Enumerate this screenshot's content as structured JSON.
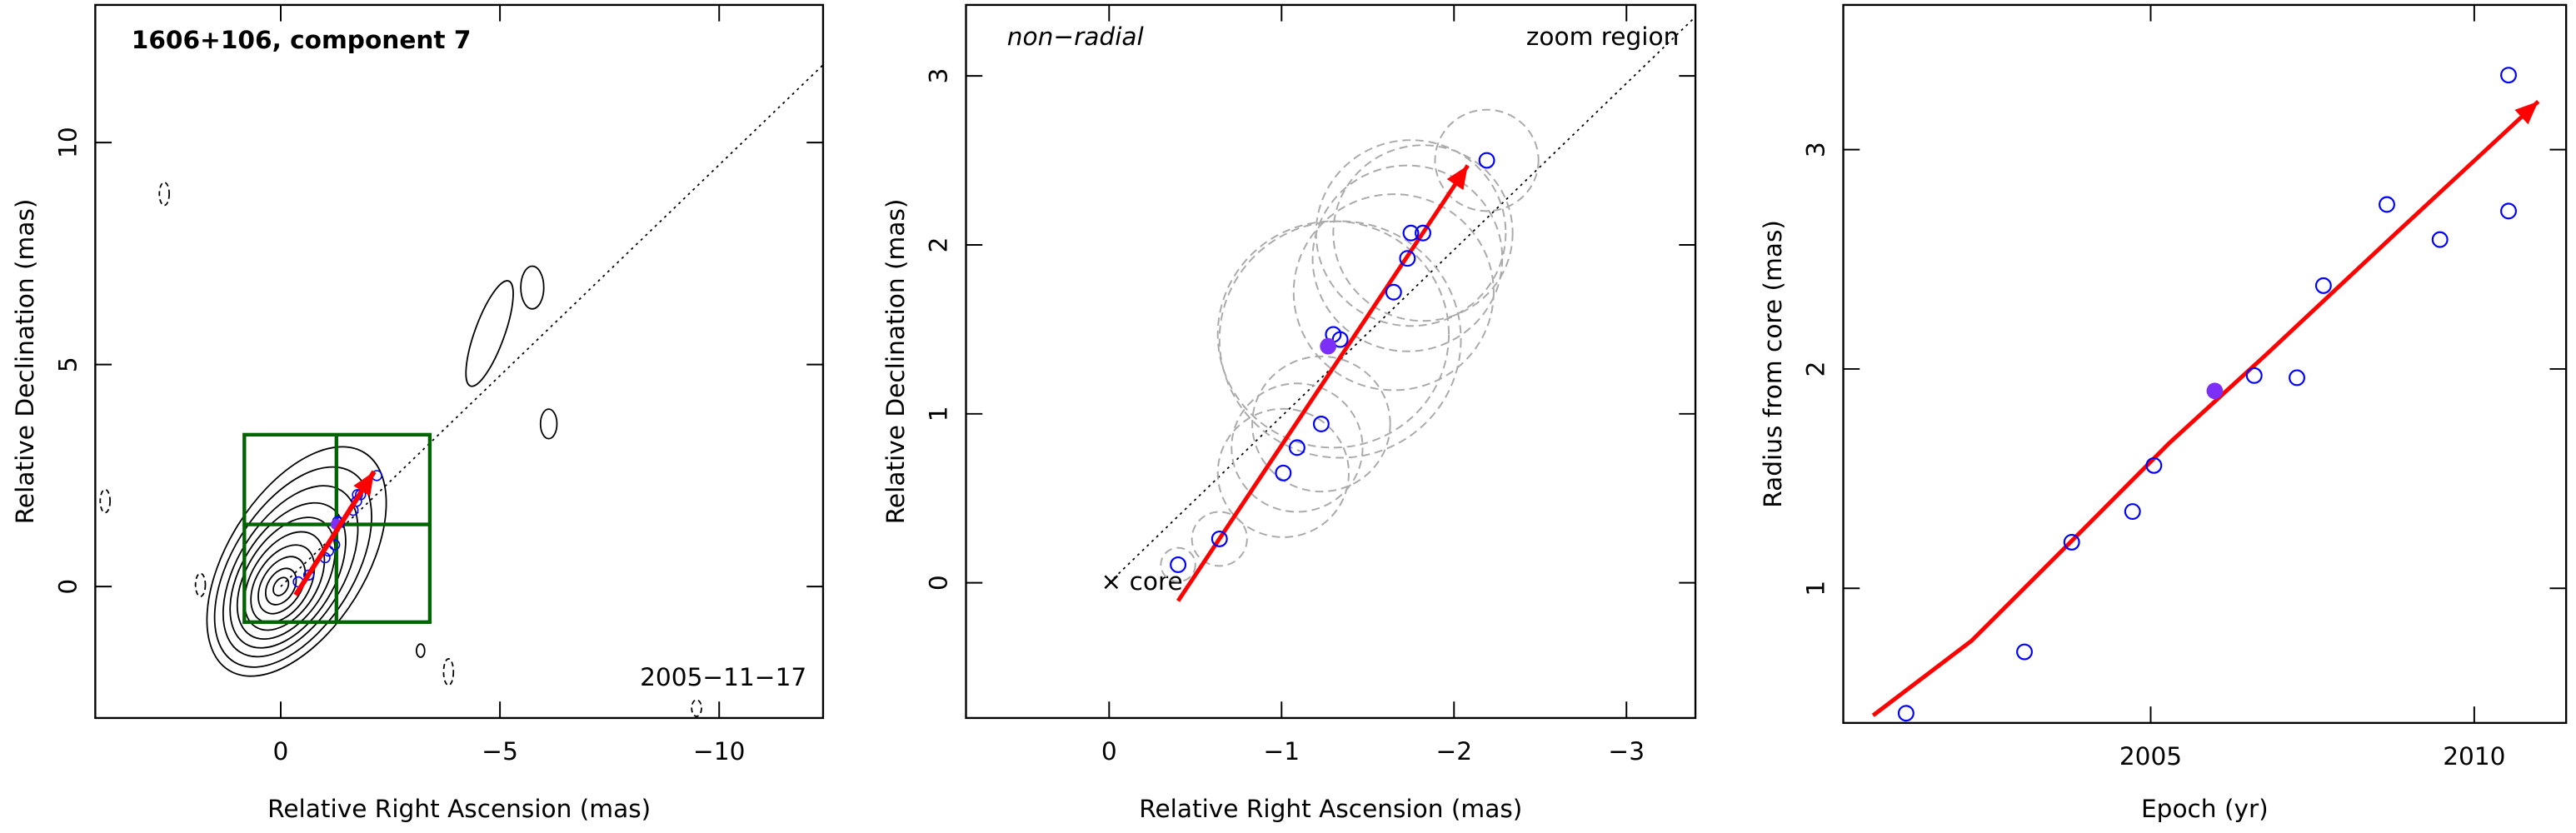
{
  "chart_data": [
    {
      "type": "map",
      "title": "1606+106, component 7",
      "xlabel": "Relative Right Ascension (mas)",
      "ylabel": "Relative Declination (mas)",
      "annotation": "2005−11−17",
      "xlim": [
        4.23,
        -12.37
      ],
      "xticks": [
        0,
        {
          "value": -5,
          "label": "−5"
        },
        {
          "value": -10,
          "label": "−10"
        }
      ],
      "ylim": [
        -2.96,
        13.1
      ],
      "yticks": [
        0,
        5,
        10
      ],
      "arrow": {
        "x": [
          -0.34,
          -2.13
        ],
        "y": [
          -0.19,
          2.59
        ],
        "color": "#ff0000"
      },
      "dotted_line": {
        "x": [
          0,
          -12.36
        ],
        "y": [
          0,
          11.74
        ]
      }
    },
    {
      "type": "scatter",
      "annotation_left": "non−radial",
      "annotation_right": "zoom region",
      "core_label": "× core",
      "xlabel": "Relative Right Ascension (mas)",
      "ylabel": "Relative Declination (mas)",
      "xlim": [
        0.83,
        -3.4
      ],
      "xticks": [
        0,
        {
          "value": -1,
          "label": "−1"
        },
        {
          "value": -2,
          "label": "−2"
        },
        {
          "value": -3,
          "label": "−3"
        }
      ],
      "ylim": [
        -0.8,
        3.42
      ],
      "yticks": [
        0,
        1,
        2,
        3
      ],
      "points": {
        "x": [
          -0.4,
          -0.64,
          -1.01,
          -1.09,
          -1.23,
          -1.3,
          -1.34,
          -1.65,
          -1.73,
          -1.75,
          -1.82,
          -2.19
        ],
        "y": [
          0.107,
          0.26,
          0.65,
          0.8,
          0.94,
          1.47,
          1.44,
          1.72,
          1.92,
          2.07,
          2.07,
          2.5
        ],
        "sizes": [
          0.1,
          0.16,
          0.38,
          0.38,
          0.4,
          0.67,
          0.7,
          0.58,
          0.55,
          0.55,
          0.52,
          0.3
        ],
        "color": "#0000ff"
      },
      "filled_point": {
        "x": -1.27,
        "y": 1.4,
        "color": "#7b2ff7"
      },
      "arrow": {
        "x": [
          -0.4,
          -2.08
        ],
        "y": [
          -0.107,
          2.47
        ],
        "color": "#ff0000"
      },
      "dotted_line": {
        "x": [
          0,
          -3.4
        ],
        "y": [
          0,
          3.35
        ]
      }
    },
    {
      "type": "scatter",
      "xlabel": "Epoch (yr)",
      "ylabel": "Radius from core (mas)",
      "xlim": [
        2000.25,
        2011.42
      ],
      "xticks": [
        2005,
        2010
      ],
      "ylim": [
        0.386,
        3.66
      ],
      "yticks": [
        1,
        2,
        3
      ],
      "points": {
        "x": [
          2001.22,
          2003.05,
          2003.78,
          2004.72,
          2005.05,
          2006.6,
          2007.26,
          2007.67,
          2008.65,
          2009.47,
          2010.53,
          2010.53
        ],
        "y": [
          0.43,
          0.71,
          1.21,
          1.35,
          1.56,
          1.97,
          1.96,
          2.38,
          2.75,
          2.59,
          2.72,
          3.34
        ],
        "color": "#0000ff"
      },
      "filled_point": {
        "x": 2005.99,
        "y": 1.9,
        "color": "#7b2ff7"
      },
      "curve": {
        "x": [
          2000.71,
          2002.23,
          2003.76,
          2005.28,
          2006.8,
          2008.83,
          2010.99
        ],
        "y": [
          0.42,
          0.76,
          1.21,
          1.66,
          2.07,
          2.63,
          3.22
        ],
        "color": "#ff0000"
      }
    }
  ]
}
